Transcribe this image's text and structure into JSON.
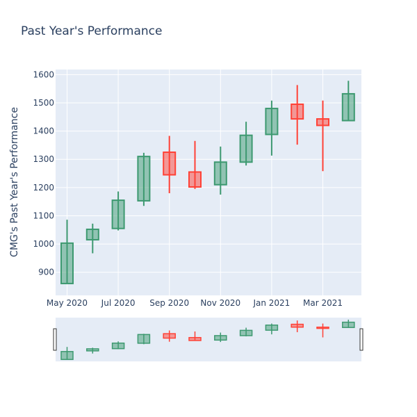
{
  "chart_data": {
    "type": "candlestick",
    "title": "Past Year's Performance",
    "ylabel": "CMG's Past Year's Performance",
    "xlabel": "",
    "ylim": [
      818,
      1618
    ],
    "yticks": [
      900,
      1000,
      1100,
      1200,
      1300,
      1400,
      1500,
      1600
    ],
    "xticks": [
      "May 2020",
      "Jul 2020",
      "Sep 2020",
      "Nov 2020",
      "Jan 2021",
      "Mar 2021"
    ],
    "grid": true,
    "range_slider": true,
    "colors": {
      "increasing": "#3d9970",
      "decreasing": "#ff4136",
      "plot_bg": "#e5ecf6"
    },
    "candles": [
      {
        "date": "2020-05",
        "open": 860,
        "high": 1086,
        "low": 858,
        "close": 1003
      },
      {
        "date": "2020-06",
        "open": 1015,
        "high": 1072,
        "low": 967,
        "close": 1052
      },
      {
        "date": "2020-07",
        "open": 1055,
        "high": 1186,
        "low": 1048,
        "close": 1155
      },
      {
        "date": "2020-08",
        "open": 1153,
        "high": 1323,
        "low": 1135,
        "close": 1310
      },
      {
        "date": "2020-09",
        "open": 1325,
        "high": 1383,
        "low": 1180,
        "close": 1245
      },
      {
        "date": "2020-10",
        "open": 1255,
        "high": 1365,
        "low": 1195,
        "close": 1202
      },
      {
        "date": "2020-11",
        "open": 1210,
        "high": 1345,
        "low": 1175,
        "close": 1290
      },
      {
        "date": "2020-12",
        "open": 1290,
        "high": 1433,
        "low": 1278,
        "close": 1385
      },
      {
        "date": "2021-01",
        "open": 1388,
        "high": 1508,
        "low": 1313,
        "close": 1480
      },
      {
        "date": "2021-02",
        "open": 1495,
        "high": 1563,
        "low": 1352,
        "close": 1443
      },
      {
        "date": "2021-03",
        "open": 1443,
        "high": 1508,
        "low": 1258,
        "close": 1420
      },
      {
        "date": "2021-04",
        "open": 1437,
        "high": 1578,
        "low": 1435,
        "close": 1532
      }
    ]
  }
}
